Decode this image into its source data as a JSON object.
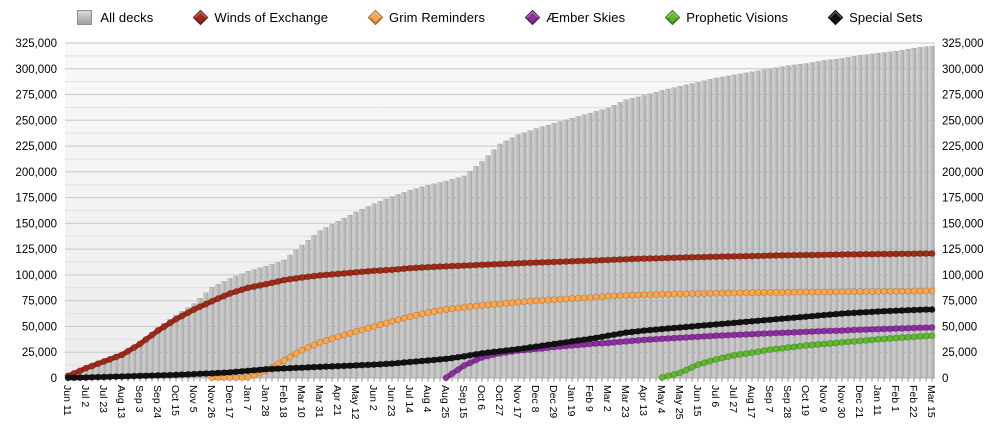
{
  "legend": {
    "position": "top-center",
    "items": [
      {
        "label": "All decks",
        "marker": "square",
        "color": "#b8b8b8"
      },
      {
        "label": "Winds of Exchange",
        "marker": "diamond",
        "color": "#9e2b17"
      },
      {
        "label": "Grim Reminders",
        "marker": "diamond",
        "color": "#f8a64f"
      },
      {
        "label": "Æmber Skies",
        "marker": "diamond",
        "color": "#8c2da0"
      },
      {
        "label": "Prophetic Visions",
        "marker": "diamond",
        "color": "#5fb62f"
      },
      {
        "label": "Special Sets",
        "marker": "diamond",
        "color": "#111111"
      }
    ]
  },
  "chart_data": {
    "type": "bar",
    "subtype": "bars-with-line-overlays",
    "title": "",
    "xlabel": "",
    "ylabel": "",
    "grid": true,
    "points_per_tick": 3,
    "y_axis": {
      "min": 0,
      "max": 325000,
      "major_step": 25000,
      "minor_step": 12500,
      "sides": [
        "left",
        "right"
      ],
      "tick_labels": [
        "0",
        "25,000",
        "50,000",
        "75,000",
        "100,000",
        "125,000",
        "150,000",
        "175,000",
        "200,000",
        "225,000",
        "250,000",
        "275,000",
        "300,000",
        "325,000"
      ]
    },
    "x_tick_labels": [
      "Jun 11",
      "Jul 2",
      "Jul 23",
      "Aug 13",
      "Sep 3",
      "Sep 24",
      "Oct 15",
      "Nov 5",
      "Nov 26",
      "Dec 17",
      "Jan 7",
      "Jan 28",
      "Feb 18",
      "Mar 10",
      "Mar 31",
      "Apr 21",
      "May 12",
      "Jun 2",
      "Jun 23",
      "Jul 14",
      "Aug 4",
      "Aug 25",
      "Sep 15",
      "Oct 6",
      "Oct 27",
      "Nov 17",
      "Dec 8",
      "Dec 29",
      "Jan 19",
      "Feb 9",
      "Mar 2",
      "Mar 23",
      "Apr 13",
      "May 4",
      "May 25",
      "Jun 15",
      "Jul 6",
      "Jul 27",
      "Aug 17",
      "Sep 7",
      "Sep 28",
      "Oct 19",
      "Nov 9",
      "Nov 30",
      "Dec 21",
      "Jan 11",
      "Feb 1",
      "Feb 22",
      "Mar 15"
    ],
    "bars": {
      "name": "All decks",
      "slug": "all-decks",
      "color": "#b8b8b8",
      "values": [
        2000,
        10000,
        17000,
        24000,
        35000,
        49000,
        61000,
        72000,
        88000,
        96500,
        103500,
        108500,
        114500,
        129000,
        143000,
        152000,
        161000,
        169000,
        176000,
        182000,
        187000,
        191000,
        196000,
        210000,
        227000,
        236000,
        242000,
        247000,
        252000,
        257000,
        262000,
        270000,
        274000,
        279000,
        283000,
        287000,
        291000,
        294000,
        297000,
        300000,
        303000,
        305000,
        308000,
        310000,
        313000,
        315000,
        317000,
        320000,
        322000
      ]
    },
    "series": [
      {
        "name": "Winds of Exchange",
        "slug": "winds-of-exchange",
        "color": "#9e2b17",
        "values": [
          2000,
          9500,
          16000,
          22500,
          33000,
          46000,
          57000,
          66500,
          74500,
          82000,
          87500,
          91000,
          95000,
          97500,
          99500,
          101000,
          102500,
          104000,
          105000,
          106500,
          107500,
          108300,
          109000,
          109800,
          110500,
          111200,
          112000,
          112500,
          113200,
          113800,
          114500,
          115200,
          115800,
          116200,
          116800,
          117200,
          117600,
          118000,
          118300,
          118700,
          119000,
          119300,
          119500,
          119800,
          120000,
          120200,
          120400,
          120600,
          120800
        ]
      },
      {
        "name": "Grim Reminders",
        "slug": "grim-reminders",
        "color": "#f8a64f",
        "values": [
          null,
          null,
          null,
          null,
          null,
          null,
          null,
          null,
          300,
          500,
          700,
          7000,
          17000,
          27000,
          34500,
          40000,
          45000,
          50000,
          55000,
          59500,
          63500,
          66500,
          68500,
          70500,
          72000,
          73500,
          75000,
          76000,
          77000,
          78000,
          79500,
          80200,
          80800,
          81200,
          81600,
          82000,
          82300,
          82600,
          82800,
          83000,
          83200,
          83400,
          83500,
          83700,
          83800,
          84000,
          84100,
          84300,
          84500
        ]
      },
      {
        "name": "Æmber Skies",
        "slug": "aember-skies",
        "color": "#8c2da0",
        "values": [
          null,
          null,
          null,
          null,
          null,
          null,
          null,
          null,
          null,
          null,
          null,
          null,
          null,
          null,
          null,
          null,
          null,
          null,
          null,
          null,
          null,
          200,
          12000,
          20000,
          24000,
          26500,
          28000,
          30000,
          31500,
          33000,
          34000,
          35500,
          37000,
          38000,
          39000,
          40000,
          41000,
          41800,
          42500,
          43300,
          44000,
          44800,
          45500,
          46000,
          46800,
          47300,
          48000,
          48500,
          49000
        ]
      },
      {
        "name": "Prophetic Visions",
        "slug": "prophetic-visions",
        "color": "#5fb62f",
        "values": [
          null,
          null,
          null,
          null,
          null,
          null,
          null,
          null,
          null,
          null,
          null,
          null,
          null,
          null,
          null,
          null,
          null,
          null,
          null,
          null,
          null,
          null,
          null,
          null,
          null,
          null,
          null,
          null,
          null,
          null,
          null,
          null,
          null,
          500,
          5000,
          13000,
          18000,
          22000,
          24500,
          27500,
          29500,
          31500,
          33000,
          34500,
          36000,
          37500,
          38800,
          40000,
          41000
        ]
      },
      {
        "name": "Special Sets",
        "slug": "special-sets",
        "color": "#111111",
        "values": [
          200,
          500,
          1000,
          1500,
          2000,
          2500,
          3000,
          3800,
          4500,
          5500,
          7000,
          8500,
          9300,
          10000,
          10800,
          11500,
          12200,
          13000,
          14000,
          15500,
          17000,
          18500,
          21000,
          24000,
          26000,
          28000,
          30500,
          33000,
          35500,
          38000,
          41000,
          44000,
          46000,
          47500,
          49000,
          50500,
          52000,
          53500,
          55000,
          56500,
          58000,
          59500,
          61000,
          62500,
          63500,
          64500,
          65300,
          66000,
          66500
        ]
      }
    ]
  }
}
